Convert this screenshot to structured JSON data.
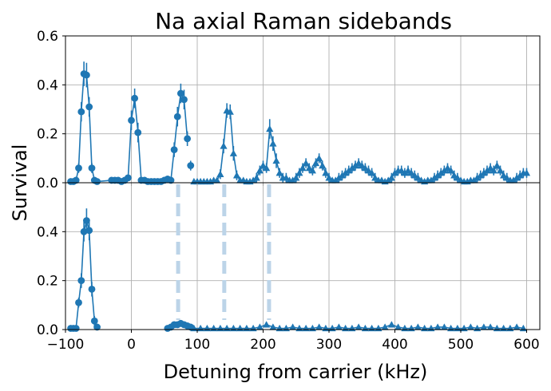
{
  "chart_data": {
    "type": "scatter",
    "title": "Na axial Raman sidebands",
    "xlabel": "Detuning from carrier (kHz)",
    "ylabel": "Survival",
    "xlim": [
      -100,
      620
    ],
    "xticks": [
      "−100",
      "0",
      "100",
      "200",
      "300",
      "400",
      "500",
      "600"
    ],
    "xtick_values": [
      -100,
      0,
      100,
      200,
      300,
      400,
      500,
      600
    ],
    "color": "#1f77b4",
    "marker_line_color": "#bcd4e8",
    "marker_lines_x": [
      71,
      141,
      209
    ],
    "grid": true,
    "panels": [
      {
        "name": "top",
        "ylim": [
          0,
          0.6
        ],
        "yticks": [
          "0.0",
          "0.2",
          "0.4",
          "0.6"
        ],
        "ytick_values": [
          0,
          0.2,
          0.4,
          0.6
        ],
        "series": [
          {
            "name": "circles",
            "marker": "circle",
            "x": [
              -92,
              -88,
              -84,
              -80,
              -76,
              -72,
              -68,
              -64,
              -60,
              -56,
              -52,
              -30,
              -25,
              -20,
              -15,
              -10,
              -5,
              0,
              5,
              10,
              15,
              20,
              25,
              30,
              35,
              40,
              45,
              50,
              55,
              60,
              65,
              70,
              75,
              80,
              85
            ],
            "y": [
              0.005,
              0.005,
              0.01,
              0.06,
              0.29,
              0.445,
              0.44,
              0.31,
              0.06,
              0.01,
              0.005,
              0.01,
              0.01,
              0.01,
              0.005,
              0.01,
              0.02,
              0.255,
              0.345,
              0.205,
              0.01,
              0.01,
              0.005,
              0.005,
              0.005,
              0.005,
              0.005,
              0.01,
              0.015,
              0.01,
              0.135,
              0.27,
              0.365,
              0.34,
              0.18
            ],
            "err": [
              0.01,
              0.01,
              0.01,
              0.02,
              0.04,
              0.05,
              0.05,
              0.04,
              0.02,
              0.01,
              0.01,
              0.01,
              0.01,
              0.01,
              0.01,
              0.01,
              0.01,
              0.04,
              0.04,
              0.04,
              0.01,
              0.01,
              0.01,
              0.01,
              0.01,
              0.01,
              0.01,
              0.01,
              0.01,
              0.01,
              0.03,
              0.04,
              0.04,
              0.04,
              0.03
            ]
          },
          {
            "name": "circles-tail",
            "marker": "circle",
            "x": [
              90
            ],
            "y": [
              0.07
            ],
            "err": [
              0.02
            ]
          },
          {
            "name": "triangles",
            "marker": "triangle",
            "x": [
              95,
              100,
              105,
              110,
              115,
              120,
              125,
              130,
              135,
              140,
              145,
              150,
              155,
              160,
              165,
              170,
              175,
              180,
              185,
              190,
              195,
              200,
              205,
              210,
              215,
              220,
              225,
              230,
              235,
              240,
              245,
              250,
              255,
              260,
              265,
              270,
              275,
              280,
              285,
              290,
              295,
              300,
              305,
              310,
              315,
              320,
              325,
              330,
              335,
              340,
              345,
              350,
              355,
              360,
              365,
              370,
              375,
              380,
              385,
              390,
              395,
              400,
              405,
              410,
              415,
              420,
              425,
              430,
              435,
              440,
              445,
              450,
              455,
              460,
              465,
              470,
              475,
              480,
              485,
              490,
              495,
              500,
              505,
              510,
              515,
              520,
              525,
              530,
              535,
              540,
              545,
              550,
              555,
              560,
              565,
              570,
              575,
              580,
              585,
              590,
              595,
              600
            ],
            "y": [
              0.005,
              0.005,
              0.005,
              0.005,
              0.005,
              0.005,
              0.01,
              0.01,
              0.035,
              0.15,
              0.295,
              0.29,
              0.12,
              0.03,
              0.01,
              0.01,
              0.005,
              0.005,
              0.01,
              0.02,
              0.05,
              0.07,
              0.06,
              0.22,
              0.16,
              0.09,
              0.04,
              0.02,
              0.02,
              0.01,
              0.01,
              0.02,
              0.04,
              0.06,
              0.08,
              0.06,
              0.05,
              0.08,
              0.1,
              0.07,
              0.04,
              0.02,
              0.01,
              0.01,
              0.02,
              0.03,
              0.04,
              0.05,
              0.06,
              0.07,
              0.08,
              0.07,
              0.06,
              0.05,
              0.04,
              0.02,
              0.01,
              0.01,
              0.005,
              0.01,
              0.02,
              0.04,
              0.05,
              0.05,
              0.04,
              0.05,
              0.04,
              0.03,
              0.02,
              0.01,
              0.005,
              0.01,
              0.01,
              0.02,
              0.03,
              0.04,
              0.05,
              0.06,
              0.05,
              0.03,
              0.02,
              0.01,
              0.005,
              0.005,
              0.01,
              0.01,
              0.02,
              0.03,
              0.04,
              0.05,
              0.06,
              0.05,
              0.07,
              0.05,
              0.03,
              0.02,
              0.01,
              0.01,
              0.02,
              0.03,
              0.04,
              0.04
            ],
            "err": [
              0.01,
              0.01,
              0.01,
              0.01,
              0.01,
              0.01,
              0.01,
              0.01,
              0.02,
              0.03,
              0.03,
              0.03,
              0.03,
              0.02,
              0.01,
              0.01,
              0.01,
              0.01,
              0.01,
              0.02,
              0.02,
              0.02,
              0.02,
              0.04,
              0.03,
              0.03,
              0.02,
              0.02,
              0.02,
              0.01,
              0.01,
              0.02,
              0.02,
              0.02,
              0.02,
              0.02,
              0.02,
              0.02,
              0.02,
              0.02,
              0.02,
              0.02,
              0.01,
              0.01,
              0.02,
              0.02,
              0.02,
              0.02,
              0.02,
              0.02,
              0.02,
              0.02,
              0.02,
              0.02,
              0.02,
              0.02,
              0.01,
              0.01,
              0.01,
              0.01,
              0.02,
              0.02,
              0.02,
              0.02,
              0.02,
              0.02,
              0.02,
              0.02,
              0.02,
              0.01,
              0.01,
              0.01,
              0.01,
              0.02,
              0.02,
              0.02,
              0.02,
              0.02,
              0.02,
              0.02,
              0.02,
              0.01,
              0.01,
              0.01,
              0.01,
              0.01,
              0.02,
              0.02,
              0.02,
              0.02,
              0.02,
              0.02,
              0.02,
              0.02,
              0.02,
              0.02,
              0.01,
              0.01,
              0.02,
              0.02,
              0.02,
              0.02
            ]
          }
        ]
      },
      {
        "name": "bottom",
        "ylim": [
          0,
          0.6
        ],
        "yticks": [
          "0.0",
          "0.2",
          "0.4"
        ],
        "ytick_values": [
          0,
          0.2,
          0.4
        ],
        "series": [
          {
            "name": "circles",
            "marker": "circle",
            "x": [
              -92,
              -88,
              -84,
              -80,
              -76,
              -72,
              -68,
              -64,
              -60,
              -56,
              -52
            ],
            "y": [
              0.005,
              0.005,
              0.005,
              0.11,
              0.2,
              0.4,
              0.445,
              0.405,
              0.165,
              0.035,
              0.01
            ],
            "err": [
              0.01,
              0.01,
              0.01,
              0.02,
              0.03,
              0.04,
              0.05,
              0.04,
              0.03,
              0.02,
              0.01
            ]
          },
          {
            "name": "circles-mid",
            "marker": "circle",
            "x": [
              55,
              60,
              65,
              70,
              75,
              80,
              85,
              90
            ],
            "y": [
              0.005,
              0.01,
              0.02,
              0.02,
              0.025,
              0.02,
              0.015,
              0.01
            ],
            "err": [
              0.005,
              0.01,
              0.01,
              0.01,
              0.01,
              0.01,
              0.01,
              0.005
            ]
          },
          {
            "name": "triangles",
            "marker": "triangle",
            "x": [
              95,
              105,
              115,
              125,
              135,
              145,
              155,
              165,
              175,
              185,
              195,
              205,
              215,
              225,
              235,
              245,
              255,
              265,
              275,
              285,
              295,
              305,
              315,
              325,
              335,
              345,
              355,
              365,
              375,
              385,
              395,
              405,
              415,
              425,
              435,
              445,
              455,
              465,
              475,
              485,
              495,
              505,
              515,
              525,
              535,
              545,
              555,
              565,
              575,
              585,
              595
            ],
            "y": [
              0.005,
              0.005,
              0.005,
              0.005,
              0.005,
              0.005,
              0.005,
              0.005,
              0.005,
              0.005,
              0.01,
              0.02,
              0.01,
              0.005,
              0.005,
              0.01,
              0.005,
              0.005,
              0.005,
              0.01,
              0.005,
              0.005,
              0.01,
              0.005,
              0.005,
              0.01,
              0.005,
              0.005,
              0.005,
              0.01,
              0.02,
              0.01,
              0.005,
              0.005,
              0.01,
              0.005,
              0.005,
              0.01,
              0.01,
              0.005,
              0.005,
              0.005,
              0.01,
              0.005,
              0.01,
              0.01,
              0.005,
              0.005,
              0.005,
              0.01,
              0.005
            ],
            "err": [
              0.005,
              0.005,
              0.005,
              0.005,
              0.005,
              0.005,
              0.005,
              0.005,
              0.005,
              0.005,
              0.01,
              0.01,
              0.01,
              0.005,
              0.005,
              0.01,
              0.005,
              0.005,
              0.005,
              0.01,
              0.005,
              0.005,
              0.01,
              0.005,
              0.005,
              0.01,
              0.005,
              0.005,
              0.005,
              0.01,
              0.01,
              0.01,
              0.005,
              0.005,
              0.01,
              0.005,
              0.005,
              0.01,
              0.01,
              0.005,
              0.005,
              0.005,
              0.01,
              0.005,
              0.01,
              0.01,
              0.005,
              0.005,
              0.005,
              0.01,
              0.005
            ]
          }
        ]
      }
    ]
  }
}
